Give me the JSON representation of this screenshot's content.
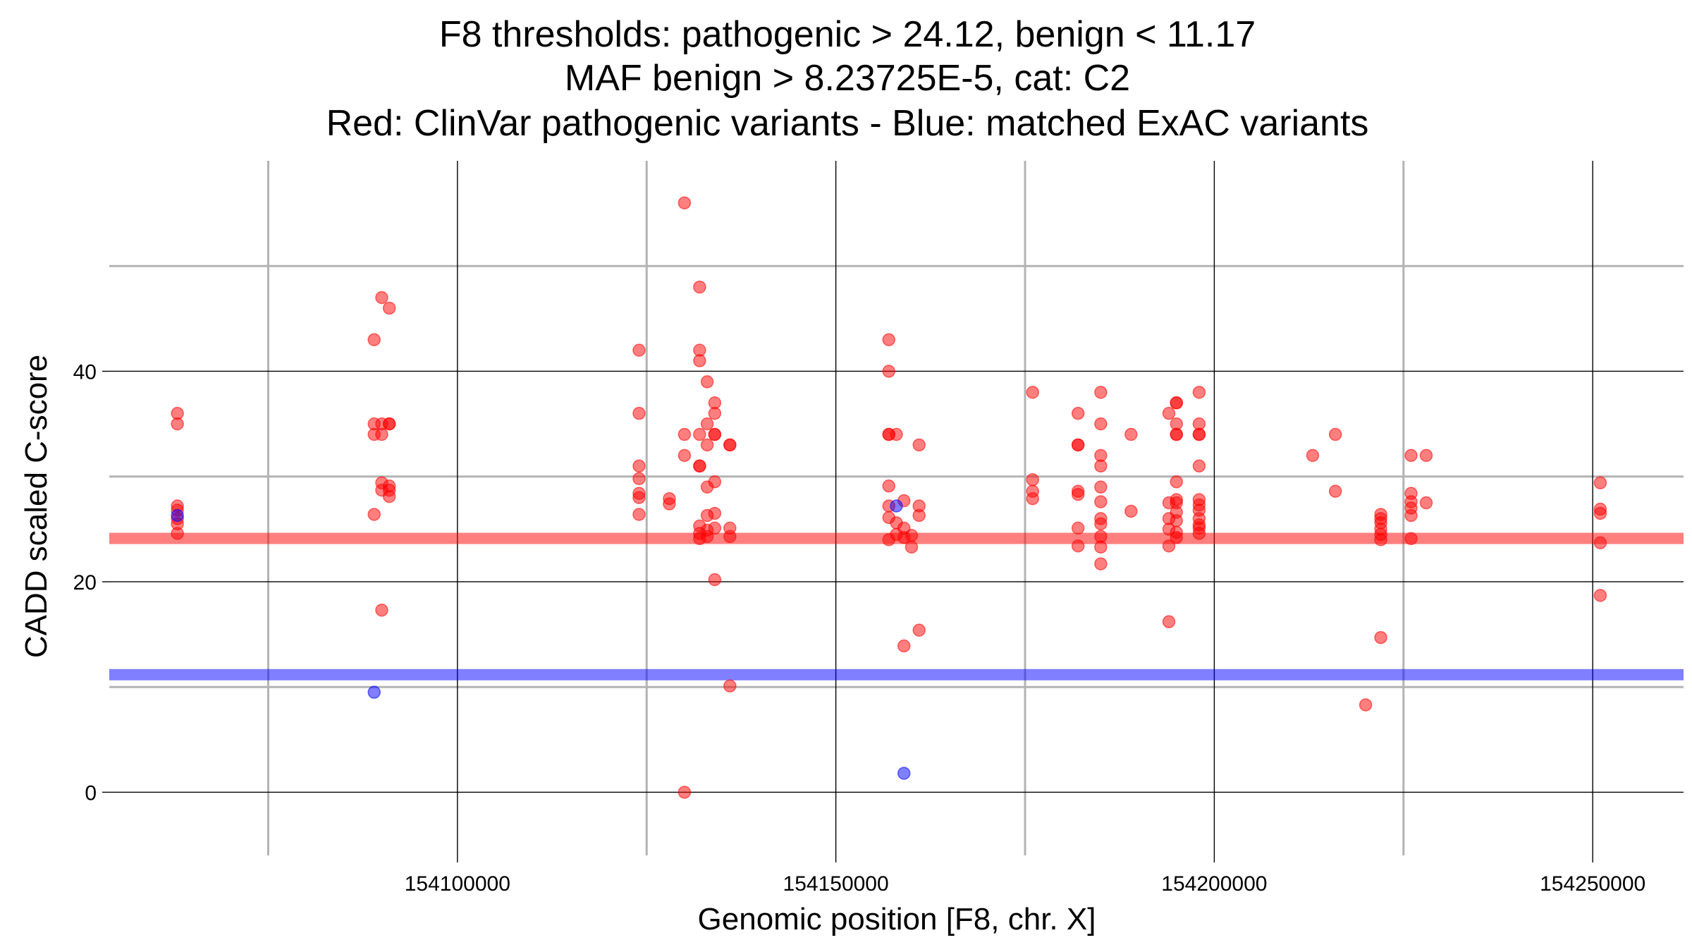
{
  "chart_data": {
    "type": "scatter",
    "title_lines": [
      "F8 thresholds: pathogenic > 24.12, benign < 11.17",
      "MAF benign > 8.23725E-5, cat: C2",
      "Red: ClinVar pathogenic variants - Blue: matched ExAC variants"
    ],
    "xlabel": "Genomic position [F8, chr. X]",
    "ylabel": "CADD scaled C-score",
    "xlim": [
      154054000,
      154262000
    ],
    "ylim": [
      -6,
      60
    ],
    "x_major_ticks": [
      154100000,
      154150000,
      154200000,
      154250000
    ],
    "x_minor_ticks": [
      154075000,
      154125000,
      154175000,
      154225000
    ],
    "y_major_ticks": [
      0,
      20,
      40
    ],
    "y_minor_ticks": [
      10,
      30,
      50
    ],
    "x_tick_labels": [
      "154100000",
      "154150000",
      "154200000",
      "154250000"
    ],
    "y_tick_labels": [
      "0",
      "20",
      "40"
    ],
    "grid": true,
    "thresholds": [
      {
        "name": "pathogenic",
        "value": 24.12,
        "color": "#ff0000"
      },
      {
        "name": "benign",
        "value": 11.17,
        "color": "#0000ff"
      }
    ],
    "series": [
      {
        "color": "#ff0000",
        "points": [
          [
            154063000,
            36.0
          ],
          [
            154063000,
            35.0
          ],
          [
            154063000,
            27.2
          ],
          [
            154063000,
            26.8
          ],
          [
            154063000,
            26.0
          ],
          [
            154063000,
            25.5
          ],
          [
            154063000,
            24.6
          ],
          [
            154089000,
            43.0
          ],
          [
            154089000,
            35.0
          ],
          [
            154089000,
            34.0
          ],
          [
            154089000,
            26.4
          ],
          [
            154090000,
            47.0
          ],
          [
            154090000,
            35.0
          ],
          [
            154090000,
            34.0
          ],
          [
            154090000,
            29.4
          ],
          [
            154090000,
            28.7
          ],
          [
            154090000,
            17.3
          ],
          [
            154091000,
            46.0
          ],
          [
            154091000,
            35.0
          ],
          [
            154091000,
            35.0
          ],
          [
            154091000,
            29.1
          ],
          [
            154091000,
            28.7
          ],
          [
            154091000,
            28.1
          ],
          [
            154124000,
            42.0
          ],
          [
            154124000,
            36.0
          ],
          [
            154124000,
            31.0
          ],
          [
            154124000,
            29.8
          ],
          [
            154124000,
            28.4
          ],
          [
            154124000,
            28.0
          ],
          [
            154124000,
            26.4
          ],
          [
            154128000,
            27.9
          ],
          [
            154128000,
            27.4
          ],
          [
            154130000,
            56.0
          ],
          [
            154130000,
            34.0
          ],
          [
            154130000,
            32.0
          ],
          [
            154130000,
            0.0
          ],
          [
            154132000,
            48.0
          ],
          [
            154132000,
            42.0
          ],
          [
            154132000,
            41.0
          ],
          [
            154132000,
            34.0
          ],
          [
            154132000,
            31.0
          ],
          [
            154132000,
            31.0
          ],
          [
            154132000,
            25.3
          ],
          [
            154132000,
            24.6
          ],
          [
            154132000,
            24.1
          ],
          [
            154133000,
            39.0
          ],
          [
            154133000,
            35.0
          ],
          [
            154133000,
            33.0
          ],
          [
            154133000,
            29.0
          ],
          [
            154133000,
            26.3
          ],
          [
            154133000,
            24.9
          ],
          [
            154133000,
            24.3
          ],
          [
            154134000,
            37.0
          ],
          [
            154134000,
            36.0
          ],
          [
            154134000,
            34.0
          ],
          [
            154134000,
            34.0
          ],
          [
            154134000,
            29.5
          ],
          [
            154134000,
            26.5
          ],
          [
            154134000,
            25.1
          ],
          [
            154134000,
            20.2
          ],
          [
            154136000,
            33.0
          ],
          [
            154136000,
            33.0
          ],
          [
            154136000,
            25.1
          ],
          [
            154136000,
            24.3
          ],
          [
            154136000,
            10.1
          ],
          [
            154157000,
            43.0
          ],
          [
            154157000,
            40.0
          ],
          [
            154157000,
            34.0
          ],
          [
            154157000,
            34.0
          ],
          [
            154157000,
            29.1
          ],
          [
            154157000,
            27.2
          ],
          [
            154157000,
            26.1
          ],
          [
            154157000,
            24.0
          ],
          [
            154158000,
            34.0
          ],
          [
            154158000,
            25.6
          ],
          [
            154158000,
            24.5
          ],
          [
            154159000,
            27.7
          ],
          [
            154159000,
            25.1
          ],
          [
            154159000,
            24.2
          ],
          [
            154159000,
            13.9
          ],
          [
            154160000,
            24.4
          ],
          [
            154160000,
            23.3
          ],
          [
            154161000,
            33.0
          ],
          [
            154161000,
            27.2
          ],
          [
            154161000,
            26.3
          ],
          [
            154161000,
            15.4
          ],
          [
            154176000,
            38.0
          ],
          [
            154176000,
            29.7
          ],
          [
            154176000,
            28.6
          ],
          [
            154176000,
            27.9
          ],
          [
            154182000,
            36.0
          ],
          [
            154182000,
            33.0
          ],
          [
            154182000,
            33.0
          ],
          [
            154182000,
            28.6
          ],
          [
            154182000,
            28.3
          ],
          [
            154182000,
            25.1
          ],
          [
            154182000,
            23.4
          ],
          [
            154185000,
            38.0
          ],
          [
            154185000,
            35.0
          ],
          [
            154185000,
            32.0
          ],
          [
            154185000,
            31.0
          ],
          [
            154185000,
            29.0
          ],
          [
            154185000,
            27.6
          ],
          [
            154185000,
            26.0
          ],
          [
            154185000,
            25.5
          ],
          [
            154185000,
            24.3
          ],
          [
            154185000,
            23.3
          ],
          [
            154185000,
            21.7
          ],
          [
            154189000,
            34.0
          ],
          [
            154189000,
            26.7
          ],
          [
            154194000,
            36.0
          ],
          [
            154194000,
            27.5
          ],
          [
            154194000,
            26.0
          ],
          [
            154194000,
            25.0
          ],
          [
            154194000,
            23.4
          ],
          [
            154194000,
            16.2
          ],
          [
            154195000,
            37.0
          ],
          [
            154195000,
            37.0
          ],
          [
            154195000,
            35.0
          ],
          [
            154195000,
            34.0
          ],
          [
            154195000,
            34.0
          ],
          [
            154195000,
            29.5
          ],
          [
            154195000,
            27.8
          ],
          [
            154195000,
            27.5
          ],
          [
            154195000,
            26.6
          ],
          [
            154195000,
            25.8
          ],
          [
            154195000,
            24.7
          ],
          [
            154195000,
            24.2
          ],
          [
            154198000,
            38.0
          ],
          [
            154198000,
            35.0
          ],
          [
            154198000,
            34.0
          ],
          [
            154198000,
            34.0
          ],
          [
            154198000,
            31.0
          ],
          [
            154198000,
            27.8
          ],
          [
            154198000,
            27.3
          ],
          [
            154198000,
            26.8
          ],
          [
            154198000,
            26.0
          ],
          [
            154198000,
            25.4
          ],
          [
            154198000,
            25.1
          ],
          [
            154198000,
            24.6
          ],
          [
            154213000,
            32.0
          ],
          [
            154216000,
            34.0
          ],
          [
            154216000,
            28.6
          ],
          [
            154220000,
            8.3
          ],
          [
            154222000,
            26.4
          ],
          [
            154222000,
            26.0
          ],
          [
            154222000,
            25.6
          ],
          [
            154222000,
            25.0
          ],
          [
            154222000,
            24.5
          ],
          [
            154222000,
            24.0
          ],
          [
            154222000,
            14.7
          ],
          [
            154226000,
            32.0
          ],
          [
            154226000,
            28.4
          ],
          [
            154226000,
            27.6
          ],
          [
            154226000,
            27.0
          ],
          [
            154226000,
            26.3
          ],
          [
            154226000,
            24.1
          ],
          [
            154228000,
            32.0
          ],
          [
            154228000,
            27.5
          ],
          [
            154251000,
            29.4
          ],
          [
            154251000,
            26.9
          ],
          [
            154251000,
            26.5
          ],
          [
            154251000,
            23.7
          ],
          [
            154251000,
            18.7
          ]
        ]
      },
      {
        "color": "#0000ff",
        "points": [
          [
            154063000,
            26.3
          ],
          [
            154089000,
            9.5
          ],
          [
            154158000,
            27.2
          ],
          [
            154159000,
            1.8
          ]
        ]
      }
    ]
  }
}
